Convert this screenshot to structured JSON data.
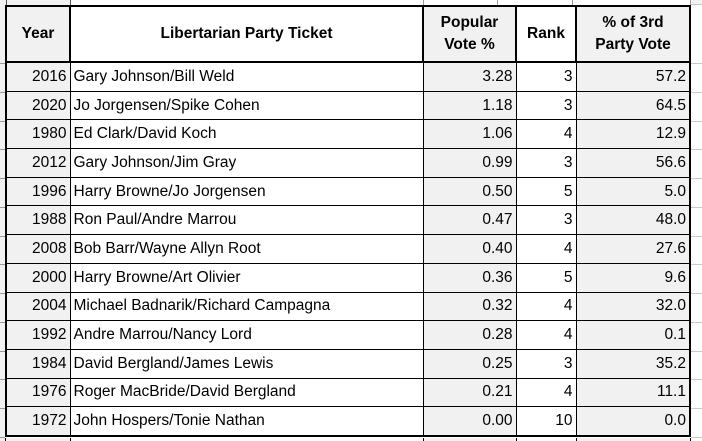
{
  "table": {
    "columns": [
      {
        "key": "year",
        "label": "Year"
      },
      {
        "key": "ticket",
        "label": "Libertarian Party Ticket"
      },
      {
        "key": "popular_vote_pct",
        "label": "Popular\nVote %"
      },
      {
        "key": "rank",
        "label": "Rank"
      },
      {
        "key": "third_party_vote_pct",
        "label": "% of 3rd\nParty Vote"
      }
    ],
    "rows": [
      {
        "year": "2016",
        "ticket": "Gary Johnson/Bill Weld",
        "popular_vote_pct": "3.28",
        "rank": "3",
        "third_party_vote_pct": "57.2"
      },
      {
        "year": "2020",
        "ticket": "Jo Jorgensen/Spike Cohen",
        "popular_vote_pct": "1.18",
        "rank": "3",
        "third_party_vote_pct": "64.5"
      },
      {
        "year": "1980",
        "ticket": "Ed Clark/David Koch",
        "popular_vote_pct": "1.06",
        "rank": "4",
        "third_party_vote_pct": "12.9"
      },
      {
        "year": "2012",
        "ticket": "Gary Johnson/Jim Gray",
        "popular_vote_pct": "0.99",
        "rank": "3",
        "third_party_vote_pct": "56.6"
      },
      {
        "year": "1996",
        "ticket": "Harry Browne/Jo Jorgensen",
        "popular_vote_pct": "0.50",
        "rank": "5",
        "third_party_vote_pct": "5.0"
      },
      {
        "year": "1988",
        "ticket": "Ron Paul/Andre Marrou",
        "popular_vote_pct": "0.47",
        "rank": "3",
        "third_party_vote_pct": "48.0"
      },
      {
        "year": "2008",
        "ticket": "Bob Barr/Wayne Allyn Root",
        "popular_vote_pct": "0.40",
        "rank": "4",
        "third_party_vote_pct": "27.6"
      },
      {
        "year": "2000",
        "ticket": "Harry Browne/Art Olivier",
        "popular_vote_pct": "0.36",
        "rank": "5",
        "third_party_vote_pct": "9.6"
      },
      {
        "year": "2004",
        "ticket": "Michael Badnarik/Richard Campagna",
        "popular_vote_pct": "0.32",
        "rank": "4",
        "third_party_vote_pct": "32.0"
      },
      {
        "year": "1992",
        "ticket": "Andre Marrou/Nancy Lord",
        "popular_vote_pct": "0.28",
        "rank": "4",
        "third_party_vote_pct": "0.1"
      },
      {
        "year": "1984",
        "ticket": "David Bergland/James Lewis",
        "popular_vote_pct": "0.25",
        "rank": "3",
        "third_party_vote_pct": "35.2"
      },
      {
        "year": "1976",
        "ticket": "Roger MacBride/David Bergland",
        "popular_vote_pct": "0.21",
        "rank": "4",
        "third_party_vote_pct": "11.1"
      },
      {
        "year": "1972",
        "ticket": "John Hospers/Tonie Nathan",
        "popular_vote_pct": "0.00",
        "rank": "10",
        "third_party_vote_pct": "0.0"
      }
    ]
  },
  "chart_data": {
    "type": "table",
    "columns": [
      "Year",
      "Libertarian Party Ticket",
      "Popular Vote %",
      "Rank",
      "% of 3rd Party Vote"
    ],
    "rows": [
      [
        "2016",
        "Gary Johnson/Bill Weld",
        3.28,
        3,
        57.2
      ],
      [
        "2020",
        "Jo Jorgensen/Spike Cohen",
        1.18,
        3,
        64.5
      ],
      [
        "1980",
        "Ed Clark/David Koch",
        1.06,
        4,
        12.9
      ],
      [
        "2012",
        "Gary Johnson/Jim Gray",
        0.99,
        3,
        56.6
      ],
      [
        "1996",
        "Harry Browne/Jo Jorgensen",
        0.5,
        5,
        5.0
      ],
      [
        "1988",
        "Ron Paul/Andre Marrou",
        0.47,
        3,
        48.0
      ],
      [
        "2008",
        "Bob Barr/Wayne Allyn Root",
        0.4,
        4,
        27.6
      ],
      [
        "2000",
        "Harry Browne/Art Olivier",
        0.36,
        5,
        9.6
      ],
      [
        "2004",
        "Michael Badnarik/Richard Campagna",
        0.32,
        4,
        32.0
      ],
      [
        "1992",
        "Andre Marrou/Nancy Lord",
        0.28,
        4,
        0.1
      ],
      [
        "1984",
        "David Bergland/James Lewis",
        0.25,
        3,
        35.2
      ],
      [
        "1976",
        "Roger MacBride/David Bergland",
        0.21,
        4,
        11.1
      ],
      [
        "1972",
        "John Hospers/Tonie Nathan",
        0.0,
        10,
        0.0
      ]
    ],
    "layout_hints": {
      "striped_columns": [
        0,
        2,
        4
      ],
      "header_bold": true,
      "grid": true
    }
  },
  "colors": {
    "stripe_fill": "#f1f1f1",
    "cell_white": "#ffffff",
    "border": "#000000",
    "sheet_gridline": "#c8c8c8"
  }
}
